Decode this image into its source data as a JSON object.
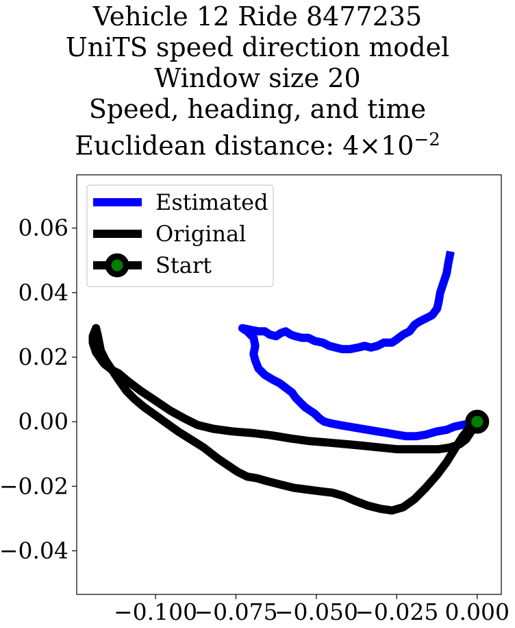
{
  "chart_data": {
    "type": "line",
    "title_lines": [
      "Vehicle 12 Ride 8477235",
      "UniTS speed direction model",
      "Window size 20",
      "Speed, heading, and time"
    ],
    "title_distance_prefix": "Euclidean distance: 4",
    "title_distance_times": "×",
    "title_distance_base": "10",
    "title_distance_exponent": "−2",
    "xlabel": "",
    "ylabel": "",
    "xlim": [
      -0.1245,
      0.0075
    ],
    "ylim": [
      -0.0535,
      0.0765
    ],
    "xticks": [
      -0.1,
      -0.075,
      -0.05,
      -0.025,
      0.0
    ],
    "xtick_labels": [
      "−0.100",
      "−0.075",
      "−0.050",
      "−0.025",
      "0.000"
    ],
    "yticks": [
      -0.04,
      -0.02,
      0.0,
      0.02,
      0.04,
      0.06
    ],
    "ytick_labels": [
      "−0.04",
      "−0.02",
      "0.00",
      "0.02",
      "0.04",
      "0.06"
    ],
    "grid": false,
    "legend_position": "top-left",
    "series": [
      {
        "name": "Estimated",
        "color": "#0000ff",
        "points": [
          [
            -0.0085,
            0.0515
          ],
          [
            -0.009,
            0.049
          ],
          [
            -0.0095,
            0.046
          ],
          [
            -0.0105,
            0.043
          ],
          [
            -0.0115,
            0.04
          ],
          [
            -0.012,
            0.037
          ],
          [
            -0.0125,
            0.035
          ],
          [
            -0.014,
            0.033
          ],
          [
            -0.016,
            0.032
          ],
          [
            -0.018,
            0.031
          ],
          [
            -0.0195,
            0.03
          ],
          [
            -0.021,
            0.028
          ],
          [
            -0.023,
            0.027
          ],
          [
            -0.025,
            0.0255
          ],
          [
            -0.0265,
            0.0245
          ],
          [
            -0.029,
            0.0245
          ],
          [
            -0.031,
            0.0235
          ],
          [
            -0.033,
            0.023
          ],
          [
            -0.035,
            0.0235
          ],
          [
            -0.037,
            0.023
          ],
          [
            -0.0395,
            0.0225
          ],
          [
            -0.042,
            0.0225
          ],
          [
            -0.044,
            0.023
          ],
          [
            -0.046,
            0.0235
          ],
          [
            -0.048,
            0.0245
          ],
          [
            -0.0505,
            0.025
          ],
          [
            -0.0525,
            0.026
          ],
          [
            -0.0545,
            0.026
          ],
          [
            -0.0565,
            0.0265
          ],
          [
            -0.058,
            0.027
          ],
          [
            -0.0595,
            0.028
          ],
          [
            -0.061,
            0.0275
          ],
          [
            -0.0625,
            0.0265
          ],
          [
            -0.0645,
            0.027
          ],
          [
            -0.066,
            0.028
          ],
          [
            -0.068,
            0.028
          ],
          [
            -0.0705,
            0.0285
          ],
          [
            -0.073,
            0.029
          ],
          [
            -0.0715,
            0.028
          ],
          [
            -0.0695,
            0.026
          ],
          [
            -0.069,
            0.0235
          ],
          [
            -0.0695,
            0.021
          ],
          [
            -0.069,
            0.019
          ],
          [
            -0.068,
            0.0165
          ],
          [
            -0.066,
            0.0145
          ],
          [
            -0.0635,
            0.013
          ],
          [
            -0.0615,
            0.012
          ],
          [
            -0.0595,
            0.0105
          ],
          [
            -0.0575,
            0.009
          ],
          [
            -0.0565,
            0.0075
          ],
          [
            -0.055,
            0.006
          ],
          [
            -0.0535,
            0.0045
          ],
          [
            -0.052,
            0.0035
          ],
          [
            -0.0505,
            0.0025
          ],
          [
            -0.049,
            0.001
          ],
          [
            -0.0475,
            0.0
          ],
          [
            -0.0455,
            -0.0005
          ],
          [
            -0.043,
            -0.001
          ],
          [
            -0.04,
            -0.0015
          ],
          [
            -0.037,
            -0.002
          ],
          [
            -0.034,
            -0.0025
          ],
          [
            -0.031,
            -0.003
          ],
          [
            -0.028,
            -0.0035
          ],
          [
            -0.025,
            -0.004
          ],
          [
            -0.022,
            -0.0045
          ],
          [
            -0.019,
            -0.0045
          ],
          [
            -0.016,
            -0.004
          ],
          [
            -0.0125,
            -0.003
          ],
          [
            -0.0095,
            -0.0025
          ],
          [
            -0.007,
            -0.0015
          ],
          [
            -0.0045,
            -0.001
          ],
          [
            -0.002,
            -0.0005
          ],
          [
            0.0,
            0.0
          ]
        ]
      },
      {
        "name": "Original",
        "color": "#000000",
        "points": [
          [
            0.0,
            0.0
          ],
          [
            -0.0015,
            -0.0025
          ],
          [
            -0.0035,
            -0.0055
          ],
          [
            -0.0055,
            -0.007
          ],
          [
            -0.0085,
            -0.008
          ],
          [
            -0.012,
            -0.0085
          ],
          [
            -0.016,
            -0.0085
          ],
          [
            -0.02,
            -0.0085
          ],
          [
            -0.025,
            -0.0085
          ],
          [
            -0.03,
            -0.008
          ],
          [
            -0.035,
            -0.0075
          ],
          [
            -0.04,
            -0.007
          ],
          [
            -0.046,
            -0.0065
          ],
          [
            -0.052,
            -0.006
          ],
          [
            -0.058,
            -0.0052
          ],
          [
            -0.064,
            -0.0042
          ],
          [
            -0.07,
            -0.0035
          ],
          [
            -0.076,
            -0.003
          ],
          [
            -0.082,
            -0.0022
          ],
          [
            -0.087,
            -0.001
          ],
          [
            -0.091,
            0.001
          ],
          [
            -0.0955,
            0.0035
          ],
          [
            -0.1,
            0.0065
          ],
          [
            -0.1045,
            0.0095
          ],
          [
            -0.1085,
            0.0125
          ],
          [
            -0.1115,
            0.015
          ],
          [
            -0.1135,
            0.016
          ],
          [
            -0.116,
            0.018
          ],
          [
            -0.1185,
            0.0215
          ],
          [
            -0.1195,
            0.0245
          ],
          [
            -0.1195,
            0.0265
          ],
          [
            -0.1185,
            0.029
          ],
          [
            -0.118,
            0.027
          ],
          [
            -0.1175,
            0.0245
          ],
          [
            -0.117,
            0.022
          ],
          [
            -0.1155,
            0.019
          ],
          [
            -0.1135,
            0.016
          ],
          [
            -0.1115,
            0.013
          ],
          [
            -0.109,
            0.0095
          ],
          [
            -0.1065,
            0.007
          ],
          [
            -0.1035,
            0.0045
          ],
          [
            -0.1,
            0.002
          ],
          [
            -0.0965,
            -0.0005
          ],
          [
            -0.093,
            -0.003
          ],
          [
            -0.089,
            -0.0055
          ],
          [
            -0.085,
            -0.008
          ],
          [
            -0.0805,
            -0.0115
          ],
          [
            -0.0775,
            -0.0135
          ],
          [
            -0.0745,
            -0.0155
          ],
          [
            -0.0715,
            -0.017
          ],
          [
            -0.0685,
            -0.0175
          ],
          [
            -0.065,
            -0.0185
          ],
          [
            -0.061,
            -0.0195
          ],
          [
            -0.057,
            -0.0205
          ],
          [
            -0.053,
            -0.021
          ],
          [
            -0.049,
            -0.0215
          ],
          [
            -0.045,
            -0.022
          ],
          [
            -0.0415,
            -0.023
          ],
          [
            -0.038,
            -0.0245
          ],
          [
            -0.034,
            -0.026
          ],
          [
            -0.03,
            -0.027
          ],
          [
            -0.0265,
            -0.0275
          ],
          [
            -0.023,
            -0.0265
          ],
          [
            -0.0195,
            -0.024
          ],
          [
            -0.016,
            -0.0205
          ],
          [
            -0.0125,
            -0.0165
          ],
          [
            -0.0095,
            -0.0125
          ],
          [
            -0.007,
            -0.0085
          ],
          [
            -0.0045,
            -0.0045
          ],
          [
            -0.002,
            -0.0015
          ],
          [
            0.0,
            0.0
          ]
        ]
      }
    ],
    "start_marker": {
      "name": "Start",
      "point": [
        0.0,
        0.0
      ],
      "edge_color": "#000000",
      "face_color": "#008000"
    }
  }
}
